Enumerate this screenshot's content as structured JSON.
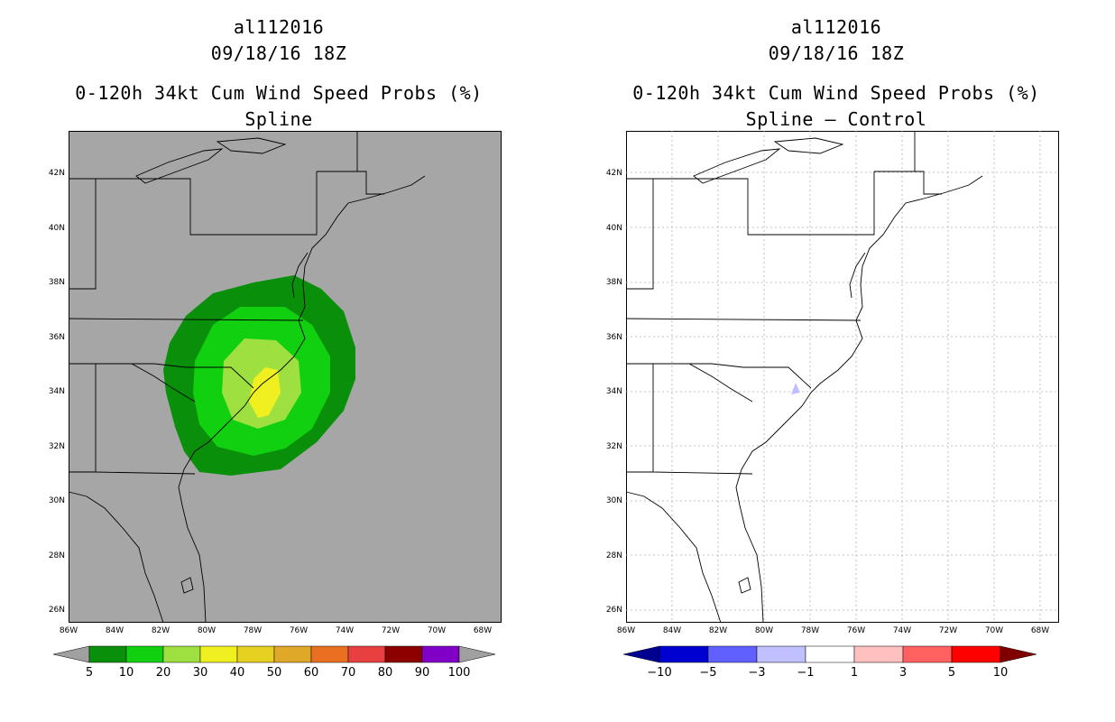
{
  "left_panel": {
    "title_storm": "al112016",
    "title_time": "09/18/16 18Z",
    "title_product": "0-120h 34kt Cum Wind Speed Probs (%)",
    "title_variant": "Spline",
    "colorbar": {
      "labels": [
        "5",
        "10",
        "20",
        "30",
        "40",
        "50",
        "60",
        "70",
        "80",
        "90",
        "100"
      ],
      "colors": [
        "#0a8f0a",
        "#10d010",
        "#9ee040",
        "#f0f020",
        "#e6d020",
        "#e0a828",
        "#e87020",
        "#e84040",
        "#8c0000",
        "#8000c8"
      ],
      "under_color": "#a0a0a0",
      "over_color": "#a0a0a0"
    },
    "background_color": "#a6a6a6"
  },
  "right_panel": {
    "title_storm": "al112016",
    "title_time": "09/18/16 18Z",
    "title_product": "0-120h 34kt Cum Wind Speed Probs (%)",
    "title_variant": "Spline – Control",
    "colorbar": {
      "labels": [
        "−10",
        "−5",
        "−3",
        "−1",
        "1",
        "3",
        "5",
        "10"
      ],
      "colors": [
        "#0000d0",
        "#6060ff",
        "#c0c0ff",
        "#ffffff",
        "#ffc0c0",
        "#ff6060",
        "#ff0000"
      ],
      "under_color": "#000090",
      "over_color": "#800000"
    },
    "background_color": "#ffffff"
  },
  "axes": {
    "lat_labels": [
      "42N",
      "40N",
      "38N",
      "36N",
      "34N",
      "32N",
      "30N",
      "28N",
      "26N"
    ],
    "lon_labels": [
      "86W",
      "84W",
      "82W",
      "80W",
      "78W",
      "76W",
      "74W",
      "72W",
      "70W",
      "68W"
    ]
  },
  "colors": {
    "prob_5": "#0a8f0a",
    "prob_10": "#10d010",
    "prob_20": "#9ee040",
    "prob_30": "#f0f020",
    "diff_neg": "#c0c0ff"
  }
}
